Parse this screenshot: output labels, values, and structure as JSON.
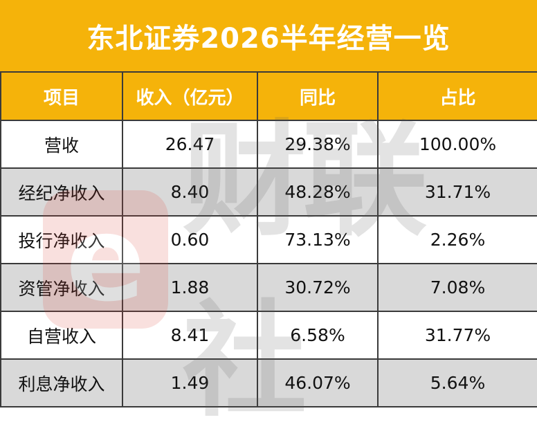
{
  "title": "东北证券2026半年经营一览",
  "headers": [
    "项目",
    "收入（亿元）",
    "同比",
    "占比"
  ],
  "rows": [
    [
      "营收",
      "26.47",
      "29.38%",
      "100.00%"
    ],
    [
      "经纪净收入",
      "8.40",
      "48.28%",
      "31.71%"
    ],
    [
      "投行净收入",
      "0.60",
      "73.13%",
      "2.26%"
    ],
    [
      "资管净收入",
      "1.88",
      "30.72%",
      "7.08%"
    ],
    [
      "自营收入",
      "8.41",
      "6.58%",
      "31.77%"
    ],
    [
      "利息净收入",
      "1.49",
      "46.07%",
      "5.64%"
    ]
  ],
  "watermark": {
    "logo_char": "e",
    "text": "财联社"
  },
  "colors": {
    "header_bg": "#f5b30a",
    "header_text": "#ffffff",
    "stripe": "#d9d9d9",
    "border": "#3a3a3a"
  }
}
